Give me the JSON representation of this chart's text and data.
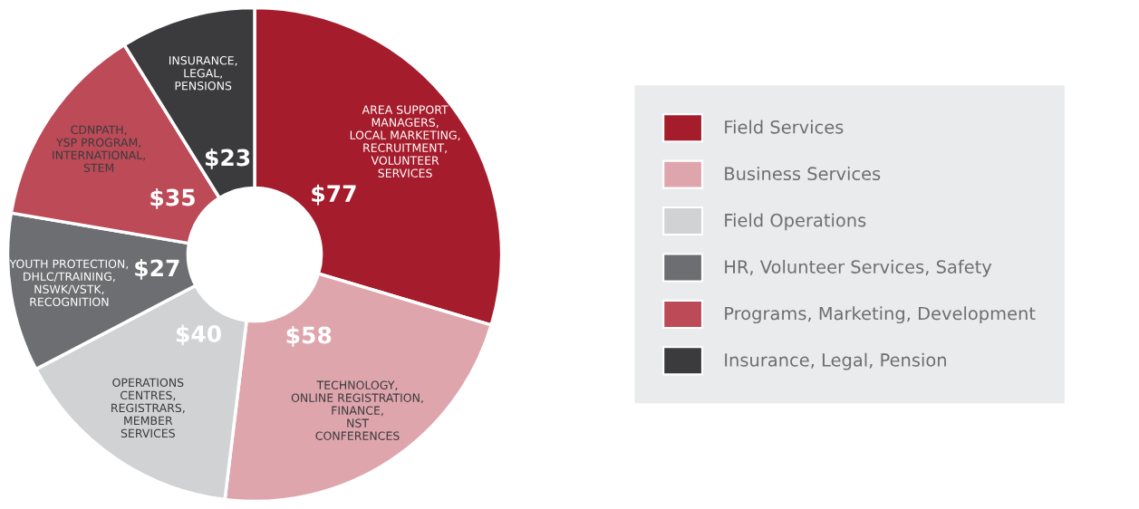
{
  "chart_data": {
    "type": "donut",
    "categories": [
      "Field Services",
      "Business Services",
      "Field Operations",
      "HR, Volunteer Services, Safety",
      "Programs, Marketing, Development",
      "Insurance, Legal, Pension"
    ],
    "values": [
      77,
      58,
      40,
      27,
      35,
      23
    ],
    "colors": [
      "#a51c2c",
      "#dfa5ad",
      "#d1d2d4",
      "#6d6e71",
      "#bc4a57",
      "#3b3b3d"
    ],
    "value_labels": [
      "$77",
      "$58",
      "$40",
      "$27",
      "$35",
      "$23"
    ],
    "annotations": [
      "AREA SUPPORT\nMANAGERS,\nLOCAL MARKETING,\nRECRUITMENT,\nVOLUNTEER\nSERVICES",
      "TECHNOLOGY,\nONLINE REGISTRATION,\nFINANCE,\nNST\nCONFERENCES",
      "OPERATIONS\nCENTRES,\nREGISTRARS,\nMEMBER\nSERVICES",
      "YOUTH PROTECTION,\nDHLC/TRAINING,\nNSWK/VSTK,\nRECOGNITION",
      "CDNPATH,\nYSP PROGRAM,\nINTERNATIONAL,\nSTEM",
      "INSURANCE,\nLEGAL,\nPENSIONS"
    ],
    "legend": "right"
  }
}
